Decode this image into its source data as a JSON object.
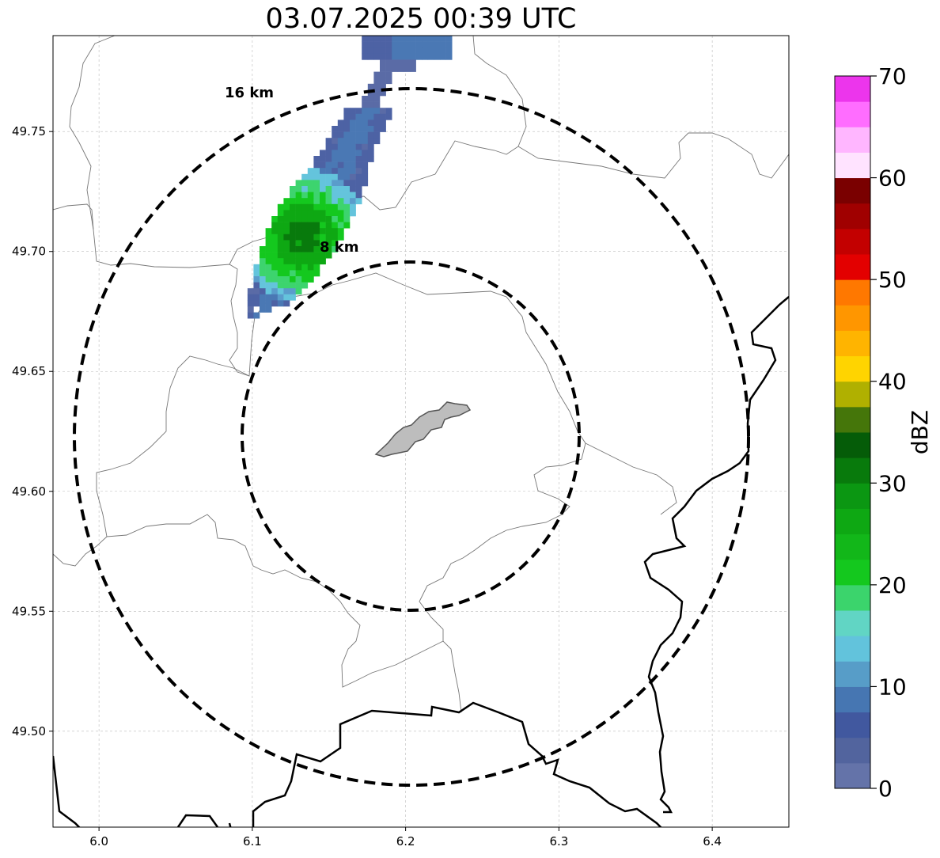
{
  "title": "03.07.2025 00:39 UTC",
  "map": {
    "lon_range": [
      5.97,
      6.45
    ],
    "lat_range": [
      49.46,
      49.79
    ],
    "x_ticks": [
      "6.0",
      "6.1",
      "6.2",
      "6.3",
      "6.4"
    ],
    "x_tick_values": [
      6.0,
      6.1,
      6.2,
      6.3,
      6.4
    ],
    "y_ticks": [
      "49.50",
      "49.55",
      "49.60",
      "49.65",
      "49.70",
      "49.75"
    ],
    "y_tick_values": [
      49.5,
      49.55,
      49.6,
      49.65,
      49.7,
      49.75
    ],
    "grid": "dashed",
    "radar_center": {
      "lon": 6.204,
      "lat": 49.623
    },
    "range_rings": [
      {
        "label": "8 km",
        "radius_km": 8
      },
      {
        "label": "16 km",
        "radius_km": 16
      }
    ],
    "line_color": "#000000",
    "border_color": "#000000",
    "admin_line_color": "#777777",
    "city_fill": "#bdbdbd"
  },
  "colorbar": {
    "label": "dBZ",
    "min": 0,
    "max": 70,
    "step": 2.5,
    "tick_values": [
      0,
      10,
      20,
      30,
      40,
      50,
      60,
      70
    ],
    "ticks": [
      "0",
      "10",
      "20",
      "30",
      "40",
      "50",
      "60",
      "70"
    ],
    "colors": [
      "#6473a9",
      "#52649e",
      "#41589f",
      "#4676b2",
      "#579dc8",
      "#62c3dc",
      "#61d5c4",
      "#3bd46c",
      "#14c81e",
      "#12b719",
      "#0ea813",
      "#0b9712",
      "#087a0c",
      "#055c08",
      "#45760a",
      "#b0b000",
      "#ffd400",
      "#ffb400",
      "#ff9600",
      "#ff7800",
      "#e30000",
      "#c30000",
      "#a00000",
      "#7a0000",
      "#ffe3ff",
      "#ffb6ff",
      "#ff6dff",
      "#ec35ec"
    ]
  }
}
